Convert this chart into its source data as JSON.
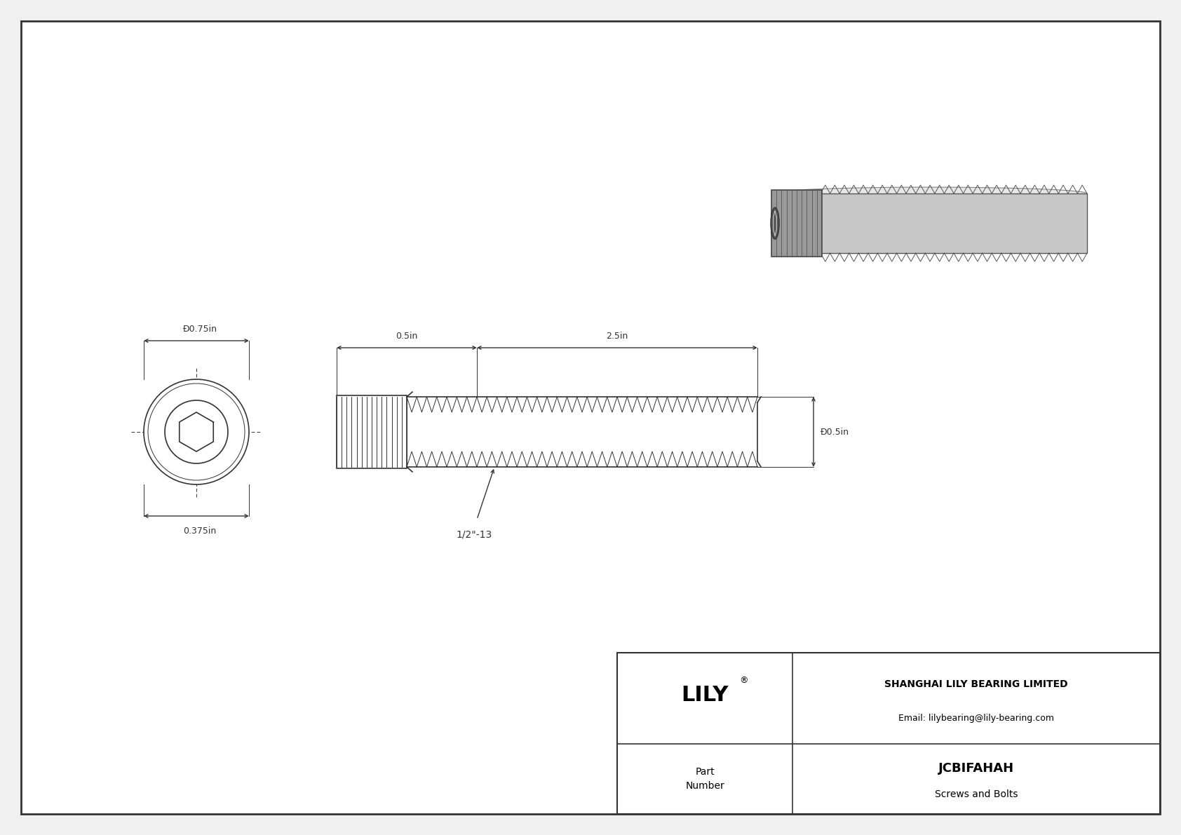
{
  "bg_color": "#f0f0f0",
  "drawing_bg": "#ffffff",
  "border_color": "#333333",
  "line_color": "#333333",
  "dim_color": "#333333",
  "title": "JCBIFAHAH",
  "subtitle": "Screws and Bolts",
  "company": "SHANGHAI LILY BEARING LIMITED",
  "email": "Email: lilybearing@lily-bearing.com",
  "brand": "LILY",
  "part_label": "Part\nNumber",
  "dim_head_dia": "Ð0.75in",
  "dim_head_height": "0.375in",
  "dim_length": "2.5in",
  "dim_body_len": "0.5in",
  "dim_dia": "Ð0.5in",
  "dim_thread": "1/2\"-13",
  "screw_color": "#aaaaaa",
  "thread_color": "#666666"
}
